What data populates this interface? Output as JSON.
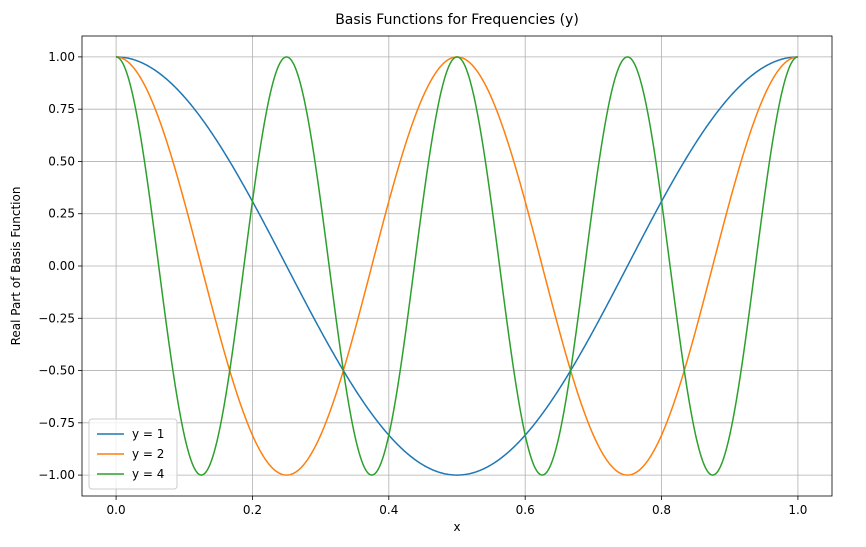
{
  "chart_data": {
    "type": "line",
    "title": "Basis Functions for Frequencies (y)",
    "xlabel": "x",
    "ylabel": "Real Part of Basis Function",
    "xlim": [
      -0.05,
      1.05
    ],
    "ylim": [
      -1.1,
      1.1
    ],
    "xticks": [
      0.0,
      0.2,
      0.4,
      0.6,
      0.8,
      1.0
    ],
    "xtick_labels": [
      "0.0",
      "0.2",
      "0.4",
      "0.6",
      "0.8",
      "1.0"
    ],
    "yticks": [
      1.0,
      0.75,
      0.5,
      0.25,
      0.0,
      -0.25,
      -0.5,
      -0.75,
      -1.0
    ],
    "ytick_labels": [
      "1.00",
      "0.75",
      "0.50",
      "0.25",
      "0.00",
      "−0.25",
      "−0.50",
      "−0.75",
      "−1.00"
    ],
    "grid": true,
    "legend_position": "lower-left",
    "series": [
      {
        "name": "y = 1",
        "frequency": 1,
        "color": "#1f77b4",
        "function": "cos(2*pi*y*x)",
        "x_range": [
          0,
          1
        ]
      },
      {
        "name": "y = 2",
        "frequency": 2,
        "color": "#ff7f0e",
        "function": "cos(2*pi*y*x)",
        "x_range": [
          0,
          1
        ]
      },
      {
        "name": "y = 4",
        "frequency": 4,
        "color": "#2ca02c",
        "function": "cos(2*pi*y*x)",
        "x_range": [
          0,
          1
        ]
      }
    ]
  }
}
